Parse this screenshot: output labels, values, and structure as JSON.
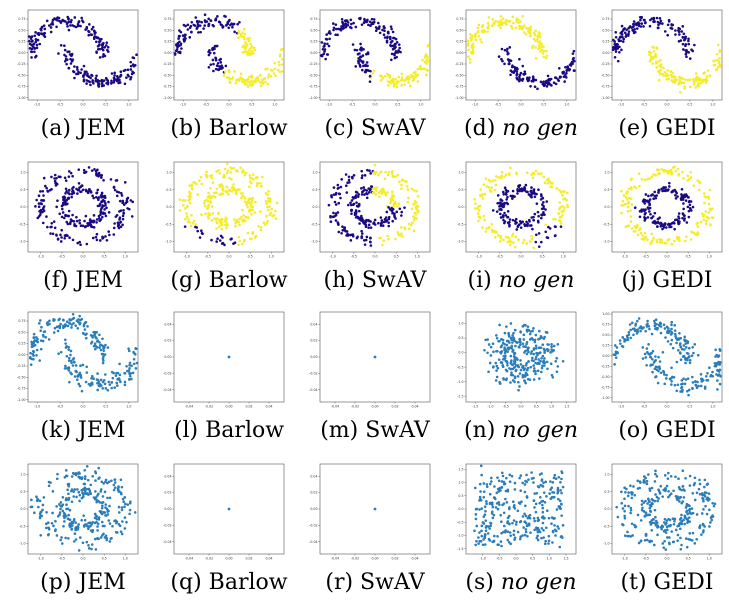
{
  "colors": {
    "dark": "#1a0a82",
    "yellow": "#f5ec2a",
    "blue": "#2a7db8",
    "frame": "#555555"
  },
  "chart_data": [
    {
      "label": "(a)",
      "method": "JEM",
      "italic": false,
      "type": "scatter",
      "dataset": "moons",
      "coloring": "single-dark",
      "xticks": [
        "-1.0",
        "-0.5",
        "0.0",
        "0.5",
        "1.0"
      ],
      "yticks": [
        "0.75",
        "0.50",
        "0.25",
        "0.00",
        "-0.25",
        "-0.50",
        "-0.75",
        "-1.00"
      ],
      "xlim": [
        -1.2,
        1.2
      ],
      "ylim": [
        -1.05,
        0.95
      ]
    },
    {
      "label": "(b)",
      "method": "Barlow",
      "italic": false,
      "type": "scatter",
      "dataset": "moons",
      "coloring": "split-x",
      "xticks": [
        "-1.0",
        "-0.5",
        "0.0",
        "0.5",
        "1.0"
      ],
      "yticks": [
        "0.75",
        "0.50",
        "0.25",
        "0.00",
        "-0.25",
        "-0.50",
        "-0.75",
        "-1.00"
      ],
      "xlim": [
        -1.2,
        1.2
      ],
      "ylim": [
        -1.05,
        0.95
      ]
    },
    {
      "label": "(c)",
      "method": "SwAV",
      "italic": false,
      "type": "scatter",
      "dataset": "moons",
      "coloring": "split-moon",
      "xticks": [
        "-1.0",
        "-0.5",
        "0.0",
        "0.5",
        "1.0"
      ],
      "yticks": [
        "0.75",
        "0.50",
        "0.25",
        "0.00",
        "-0.25",
        "-0.50",
        "-0.75",
        "-1.00"
      ],
      "xlim": [
        -1.2,
        1.2
      ],
      "ylim": [
        -1.05,
        0.95
      ]
    },
    {
      "label": "(d)",
      "method": "no gen",
      "italic": true,
      "type": "scatter",
      "dataset": "moons",
      "coloring": "moon-inverse",
      "xticks": [
        "-1.0",
        "-0.5",
        "0.0",
        "0.5",
        "1.0"
      ],
      "yticks": [
        "0.75",
        "0.50",
        "0.25",
        "0.00",
        "-0.25",
        "-0.50",
        "-0.75",
        "-1.00"
      ],
      "xlim": [
        -1.2,
        1.2
      ],
      "ylim": [
        -1.05,
        0.95
      ]
    },
    {
      "label": "(e)",
      "method": "GEDI",
      "italic": false,
      "type": "scatter",
      "dataset": "moons",
      "coloring": "moon",
      "xticks": [
        "-1.0",
        "-0.5",
        "0.0",
        "0.5",
        "1.0"
      ],
      "yticks": [
        "0.75",
        "0.50",
        "0.25",
        "0.00",
        "-0.25",
        "-0.50",
        "-0.75",
        "-1.00"
      ],
      "xlim": [
        -1.2,
        1.2
      ],
      "ylim": [
        -1.05,
        0.95
      ]
    },
    {
      "label": "(f)",
      "method": "JEM",
      "italic": false,
      "type": "scatter",
      "dataset": "circles",
      "coloring": "single-dark",
      "xticks": [
        "-1.0",
        "-0.5",
        "0.0",
        "0.5",
        "1.0"
      ],
      "yticks": [
        "1.0",
        "0.5",
        "0.0",
        "-0.5",
        "-1.0"
      ],
      "xlim": [
        -1.3,
        1.3
      ],
      "ylim": [
        -1.3,
        1.3
      ]
    },
    {
      "label": "(g)",
      "method": "Barlow",
      "italic": false,
      "type": "scatter",
      "dataset": "circles",
      "coloring": "yellow-lower-dark",
      "xticks": [
        "-1.0",
        "-0.5",
        "0.0",
        "0.5",
        "1.0"
      ],
      "yticks": [
        "1.0",
        "0.5",
        "0.0",
        "-0.5",
        "-1.0"
      ],
      "xlim": [
        -1.3,
        1.3
      ],
      "ylim": [
        -1.3,
        1.3
      ]
    },
    {
      "label": "(h)",
      "method": "SwAV",
      "italic": false,
      "type": "scatter",
      "dataset": "circles",
      "coloring": "split-left",
      "xticks": [
        "-1.0",
        "-0.5",
        "0.0",
        "0.5",
        "1.0"
      ],
      "yticks": [
        "1.0",
        "0.5",
        "0.0",
        "-0.5",
        "-1.0"
      ],
      "xlim": [
        -1.3,
        1.3
      ],
      "ylim": [
        -1.3,
        1.3
      ]
    },
    {
      "label": "(i)",
      "method": "no gen",
      "italic": true,
      "type": "scatter",
      "dataset": "circles",
      "coloring": "ring-mostly",
      "xticks": [
        "-1.0",
        "-0.5",
        "0.0",
        "0.5",
        "1.0"
      ],
      "yticks": [
        "1.0",
        "0.5",
        "0.0",
        "-0.5",
        "-1.0"
      ],
      "xlim": [
        -1.3,
        1.3
      ],
      "ylim": [
        -1.3,
        1.3
      ]
    },
    {
      "label": "(j)",
      "method": "GEDI",
      "italic": false,
      "type": "scatter",
      "dataset": "circles",
      "coloring": "ring",
      "xticks": [
        "-1.0",
        "-0.5",
        "0.0",
        "0.5",
        "1.0"
      ],
      "yticks": [
        "1.0",
        "0.5",
        "0.0",
        "-0.5",
        "-1.0"
      ],
      "xlim": [
        -1.3,
        1.3
      ],
      "ylim": [
        -1.3,
        1.3
      ]
    },
    {
      "label": "(k)",
      "method": "JEM",
      "italic": false,
      "type": "scatter",
      "dataset": "moons-noisy",
      "coloring": "single-blue",
      "xticks": [
        "-1.0",
        "-0.5",
        "0.0",
        "0.5",
        "1.0"
      ],
      "yticks": [
        "0.75",
        "0.50",
        "0.25",
        "0.00",
        "-0.25",
        "-0.50",
        "-0.75",
        "-1.00"
      ],
      "xlim": [
        -1.2,
        1.2
      ],
      "ylim": [
        -1.05,
        0.95
      ]
    },
    {
      "label": "(l)",
      "method": "Barlow",
      "italic": false,
      "type": "scatter",
      "dataset": "point",
      "coloring": "single-blue",
      "xticks": [
        "-0.04",
        "-0.02",
        "0.00",
        "0.02",
        "0.04"
      ],
      "yticks": [
        "0.04",
        "0.02",
        "0.00",
        "-0.02",
        "-0.04"
      ],
      "xlim": [
        -0.055,
        0.055
      ],
      "ylim": [
        -0.055,
        0.055
      ]
    },
    {
      "label": "(m)",
      "method": "SwAV",
      "italic": false,
      "type": "scatter",
      "dataset": "point",
      "coloring": "single-blue",
      "xticks": [
        "-0.04",
        "-0.02",
        "0.00",
        "0.02",
        "0.04"
      ],
      "yticks": [
        "0.04",
        "0.02",
        "0.00",
        "-0.02",
        "-0.04"
      ],
      "xlim": [
        -0.055,
        0.055
      ],
      "ylim": [
        -0.055,
        0.055
      ]
    },
    {
      "label": "(n)",
      "method": "no gen",
      "italic": true,
      "type": "scatter",
      "dataset": "blob",
      "coloring": "single-blue",
      "xticks": [
        "-1.5",
        "-1.0",
        "-0.5",
        "0.0",
        "0.5",
        "1.0",
        "1.5"
      ],
      "yticks": [
        "1.0",
        "0.5",
        "0.0",
        "-0.5",
        "-1.0",
        "-1.5"
      ],
      "xlim": [
        -1.8,
        1.8
      ],
      "ylim": [
        -1.7,
        1.4
      ]
    },
    {
      "label": "(o)",
      "method": "GEDI",
      "italic": false,
      "type": "scatter",
      "dataset": "moons-noisy",
      "coloring": "single-blue",
      "xticks": [
        "-1.0",
        "-0.5",
        "0.0",
        "0.5",
        "1.0"
      ],
      "yticks": [
        "1.00",
        "0.75",
        "0.50",
        "0.25",
        "0.00",
        "-0.25",
        "-0.50",
        "-0.75",
        "-1.00"
      ],
      "xlim": [
        -1.2,
        1.2
      ],
      "ylim": [
        -1.1,
        1.05
      ]
    },
    {
      "label": "(p)",
      "method": "JEM",
      "italic": false,
      "type": "scatter",
      "dataset": "circles-noisy",
      "coloring": "single-blue",
      "xticks": [
        "-1.0",
        "-0.5",
        "0.0",
        "0.5",
        "1.0"
      ],
      "yticks": [
        "1.0",
        "0.5",
        "0.0",
        "-0.5",
        "-1.0"
      ],
      "xlim": [
        -1.3,
        1.3
      ],
      "ylim": [
        -1.3,
        1.3
      ]
    },
    {
      "label": "(q)",
      "method": "Barlow",
      "italic": false,
      "type": "scatter",
      "dataset": "point",
      "coloring": "single-blue",
      "xticks": [
        "-0.04",
        "-0.02",
        "0.00",
        "0.02",
        "0.04"
      ],
      "yticks": [
        "0.04",
        "0.02",
        "0.00",
        "-0.02",
        "-0.04"
      ],
      "xlim": [
        -0.055,
        0.055
      ],
      "ylim": [
        -0.055,
        0.055
      ]
    },
    {
      "label": "(r)",
      "method": "SwAV",
      "italic": false,
      "type": "scatter",
      "dataset": "point",
      "coloring": "single-blue",
      "xticks": [
        "-0.04",
        "-0.02",
        "0.00",
        "0.02",
        "0.04"
      ],
      "yticks": [
        "0.04",
        "0.02",
        "0.00",
        "-0.02",
        "-0.04"
      ],
      "xlim": [
        -0.055,
        0.055
      ],
      "ylim": [
        -0.055,
        0.055
      ]
    },
    {
      "label": "(s)",
      "method": "no gen",
      "italic": true,
      "type": "scatter",
      "dataset": "blob-wide",
      "coloring": "single-blue",
      "xticks": [
        "-1.0",
        "-0.5",
        "0.0",
        "0.5",
        "1.0",
        "1.5"
      ],
      "yticks": [
        "1.5",
        "1.0",
        "0.5",
        "0.0",
        "-0.5",
        "-1.0",
        "-1.5"
      ],
      "xlim": [
        -1.5,
        1.8
      ],
      "ylim": [
        -1.7,
        1.7
      ]
    },
    {
      "label": "(t)",
      "method": "GEDI",
      "italic": false,
      "type": "scatter",
      "dataset": "circles-noisy",
      "coloring": "single-blue",
      "xticks": [
        "-1.0",
        "-0.5",
        "0.0",
        "0.5",
        "1.0"
      ],
      "yticks": [
        "1.0",
        "0.5",
        "0.0",
        "-0.5",
        "-1.0"
      ],
      "xlim": [
        -1.3,
        1.3
      ],
      "ylim": [
        -1.3,
        1.3
      ]
    }
  ]
}
